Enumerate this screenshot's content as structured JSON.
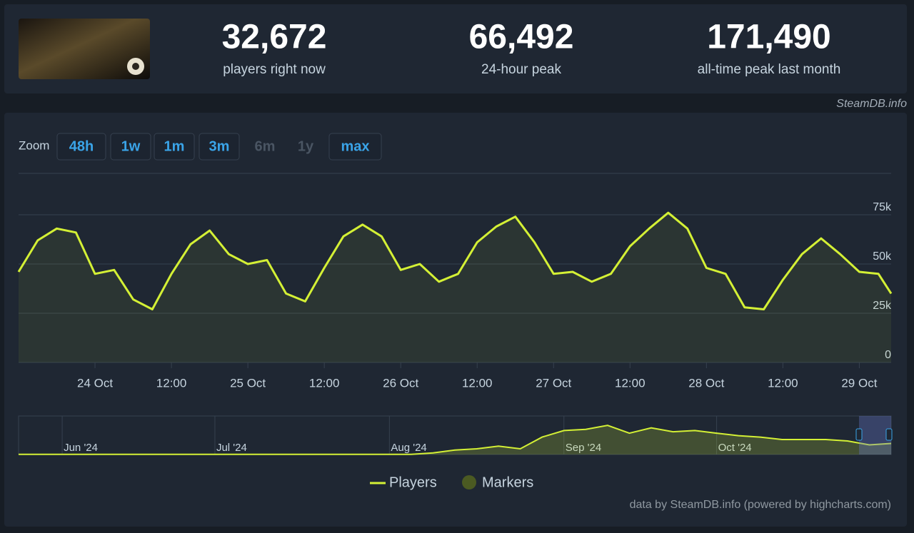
{
  "header": {
    "stats": [
      {
        "value": "32,672",
        "label": "players right now"
      },
      {
        "value": "66,492",
        "label": "24-hour peak"
      },
      {
        "value": "171,490",
        "label": "all-time peak last month"
      }
    ]
  },
  "watermark": "SteamDB.info",
  "zoom": {
    "label": "Zoom",
    "buttons": [
      {
        "text": "48h",
        "enabled": true
      },
      {
        "text": "1w",
        "enabled": true
      },
      {
        "text": "1m",
        "enabled": true
      },
      {
        "text": "3m",
        "enabled": true
      },
      {
        "text": "6m",
        "enabled": false
      },
      {
        "text": "1y",
        "enabled": false
      },
      {
        "text": "max",
        "enabled": true
      }
    ]
  },
  "chart_data": [
    {
      "type": "line",
      "x": [
        "23 Oct 12:00",
        "23 Oct 15:00",
        "23 Oct 18:00",
        "23 Oct 21:00",
        "24 Oct 00:00",
        "24 Oct 03:00",
        "24 Oct 06:00",
        "24 Oct 09:00",
        "24 Oct 12:00",
        "24 Oct 15:00",
        "24 Oct 18:00",
        "24 Oct 21:00",
        "25 Oct 00:00",
        "25 Oct 03:00",
        "25 Oct 06:00",
        "25 Oct 09:00",
        "25 Oct 12:00",
        "25 Oct 15:00",
        "25 Oct 18:00",
        "25 Oct 21:00",
        "26 Oct 00:00",
        "26 Oct 03:00",
        "26 Oct 06:00",
        "26 Oct 09:00",
        "26 Oct 12:00",
        "26 Oct 15:00",
        "26 Oct 18:00",
        "26 Oct 21:00",
        "27 Oct 00:00",
        "27 Oct 03:00",
        "27 Oct 06:00",
        "27 Oct 09:00",
        "27 Oct 12:00",
        "27 Oct 15:00",
        "27 Oct 18:00",
        "27 Oct 21:00",
        "28 Oct 00:00",
        "28 Oct 03:00",
        "28 Oct 06:00",
        "28 Oct 09:00",
        "28 Oct 12:00",
        "28 Oct 15:00",
        "28 Oct 18:00",
        "28 Oct 21:00",
        "29 Oct 00:00",
        "29 Oct 03:00",
        "29 Oct 05:00"
      ],
      "series": [
        {
          "name": "Players",
          "color": "#d4f035",
          "values": [
            46000,
            62000,
            68000,
            66000,
            45000,
            47000,
            32000,
            27000,
            45000,
            60000,
            67000,
            55000,
            50000,
            52000,
            35000,
            31000,
            48000,
            64000,
            70000,
            64000,
            47000,
            50000,
            41000,
            45000,
            61000,
            69000,
            74000,
            61000,
            45000,
            46000,
            41000,
            45000,
            59000,
            68000,
            76000,
            68000,
            48000,
            45000,
            28000,
            27000,
            42000,
            55000,
            63000,
            55000,
            46000,
            45000,
            35000
          ]
        }
      ],
      "xlim": [
        "23 Oct 12:00",
        "29 Oct 05:00"
      ],
      "xticks": [
        {
          "value": "24 Oct 00:00",
          "label": "24 Oct"
        },
        {
          "value": "24 Oct 12:00",
          "label": "12:00"
        },
        {
          "value": "25 Oct 00:00",
          "label": "25 Oct"
        },
        {
          "value": "25 Oct 12:00",
          "label": "12:00"
        },
        {
          "value": "26 Oct 00:00",
          "label": "26 Oct"
        },
        {
          "value": "26 Oct 12:00",
          "label": "12:00"
        },
        {
          "value": "27 Oct 00:00",
          "label": "27 Oct"
        },
        {
          "value": "27 Oct 12:00",
          "label": "12:00"
        },
        {
          "value": "28 Oct 00:00",
          "label": "28 Oct"
        },
        {
          "value": "28 Oct 12:00",
          "label": "12:00"
        },
        {
          "value": "29 Oct 00:00",
          "label": "29 Oct"
        }
      ],
      "ylim": [
        0,
        96000
      ],
      "yticks": [
        0,
        {
          "value": 25000,
          "label": "25k"
        },
        {
          "value": 50000,
          "label": "50k"
        },
        {
          "value": 75000,
          "label": "75k"
        }
      ],
      "grid": true
    },
    {
      "type": "area",
      "categories": [
        null,
        null,
        "Jun '24",
        null,
        null,
        null,
        null,
        null,
        null,
        "Jul '24",
        null,
        null,
        null,
        null,
        null,
        null,
        null,
        "Aug '24",
        null,
        null,
        null,
        null,
        null,
        null,
        null,
        "Sep '24",
        null,
        null,
        null,
        null,
        null,
        null,
        "Oct '24",
        null,
        null,
        null,
        null,
        null,
        null,
        null,
        null
      ],
      "series": [
        {
          "name": "Players",
          "color": "#d4f035",
          "values": [
            1000,
            1000,
            1000,
            1000,
            1000,
            1000,
            1000,
            1000,
            1000,
            1000,
            1000,
            1000,
            1000,
            1000,
            1000,
            1000,
            1000,
            1000,
            1000,
            8000,
            22000,
            28000,
            41000,
            28000,
            85000,
            117000,
            123000,
            142000,
            104000,
            130000,
            111000,
            117000,
            104000,
            92000,
            85000,
            73000,
            73000,
            73000,
            66000,
            47000,
            54000
          ]
        }
      ],
      "ylim": [
        0,
        188000
      ]
    }
  ],
  "markers": {
    "name": "Markers",
    "color": "#4b5a22"
  },
  "credit": "data by SteamDB.info (powered by highcharts.com)"
}
